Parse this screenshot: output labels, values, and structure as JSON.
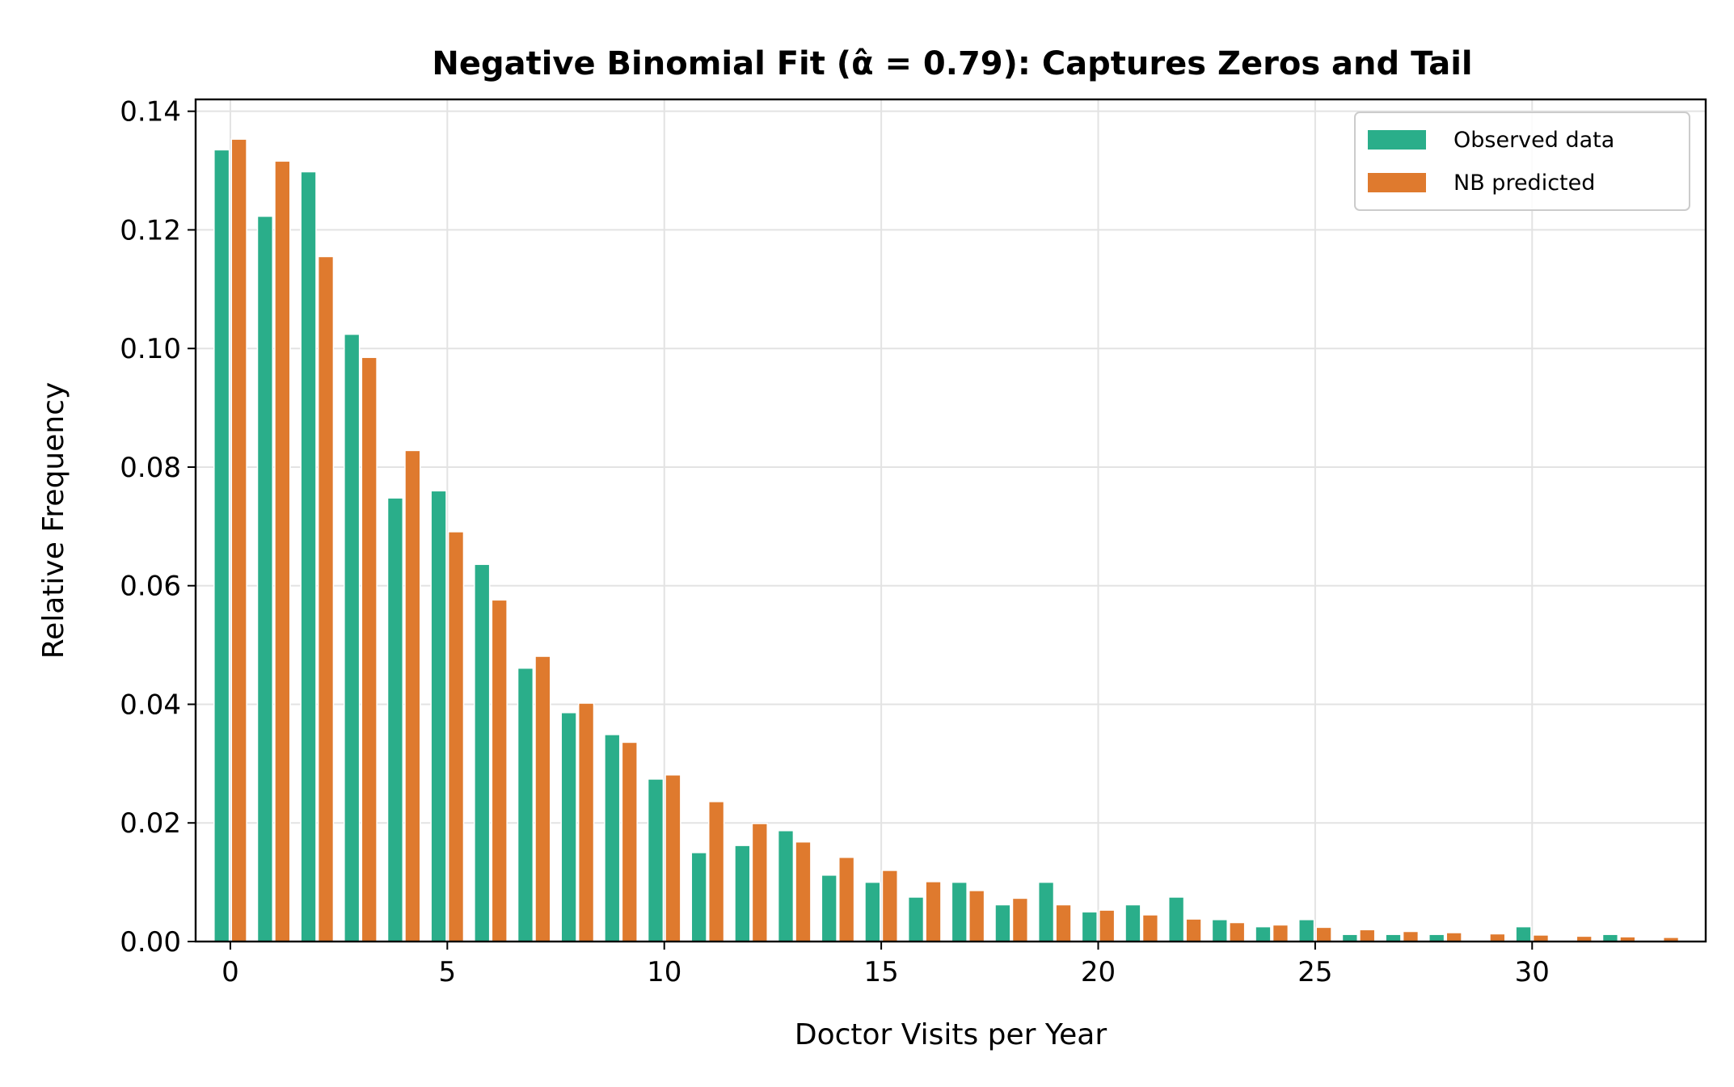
{
  "chart_data": {
    "type": "bar",
    "title": "Negative Binomial Fit (α̂ = 0.79): Captures Zeros and Tail",
    "xlabel": "Doctor Visits per Year",
    "ylabel": "Relative Frequency",
    "xlim": [
      -0.8,
      34.0
    ],
    "ylim": [
      0,
      0.142
    ],
    "xticks": [
      0,
      5,
      10,
      15,
      20,
      25,
      30
    ],
    "yticks": [
      0.0,
      0.02,
      0.04,
      0.06,
      0.08,
      0.1,
      0.12,
      0.14
    ],
    "ytick_labels": [
      "0.00",
      "0.02",
      "0.04",
      "0.06",
      "0.08",
      "0.10",
      "0.12",
      "0.14"
    ],
    "grid": true,
    "legend_position": "top-right",
    "x": [
      0,
      1,
      2,
      3,
      4,
      5,
      6,
      7,
      8,
      9,
      10,
      11,
      12,
      13,
      14,
      15,
      16,
      17,
      18,
      19,
      20,
      21,
      22,
      23,
      24,
      25,
      26,
      27,
      28,
      29,
      30,
      31,
      32,
      33
    ],
    "series": [
      {
        "name": "Observed data",
        "color": "#2aae8a",
        "values": [
          0.1335,
          0.1223,
          0.1298,
          0.1024,
          0.0748,
          0.076,
          0.0636,
          0.0461,
          0.0386,
          0.0349,
          0.0274,
          0.015,
          0.0162,
          0.0187,
          0.0112,
          0.01,
          0.0075,
          0.01,
          0.0062,
          0.01,
          0.005,
          0.0062,
          0.0075,
          0.0037,
          0.0025,
          0.0037,
          0.0012,
          0.0012,
          0.0012,
          0.0,
          0.0025,
          0.0,
          0.0012,
          0.0
        ]
      },
      {
        "name": "NB predicted",
        "color": "#df7a2e",
        "values": [
          0.1353,
          0.1316,
          0.1155,
          0.0985,
          0.0828,
          0.0691,
          0.0576,
          0.0481,
          0.0402,
          0.0336,
          0.0281,
          0.0236,
          0.0199,
          0.0168,
          0.0142,
          0.012,
          0.0101,
          0.0086,
          0.0073,
          0.0062,
          0.0053,
          0.0045,
          0.0038,
          0.0032,
          0.0028,
          0.0024,
          0.002,
          0.0017,
          0.0015,
          0.0013,
          0.0011,
          0.0009,
          0.0008,
          0.0007
        ]
      }
    ]
  }
}
